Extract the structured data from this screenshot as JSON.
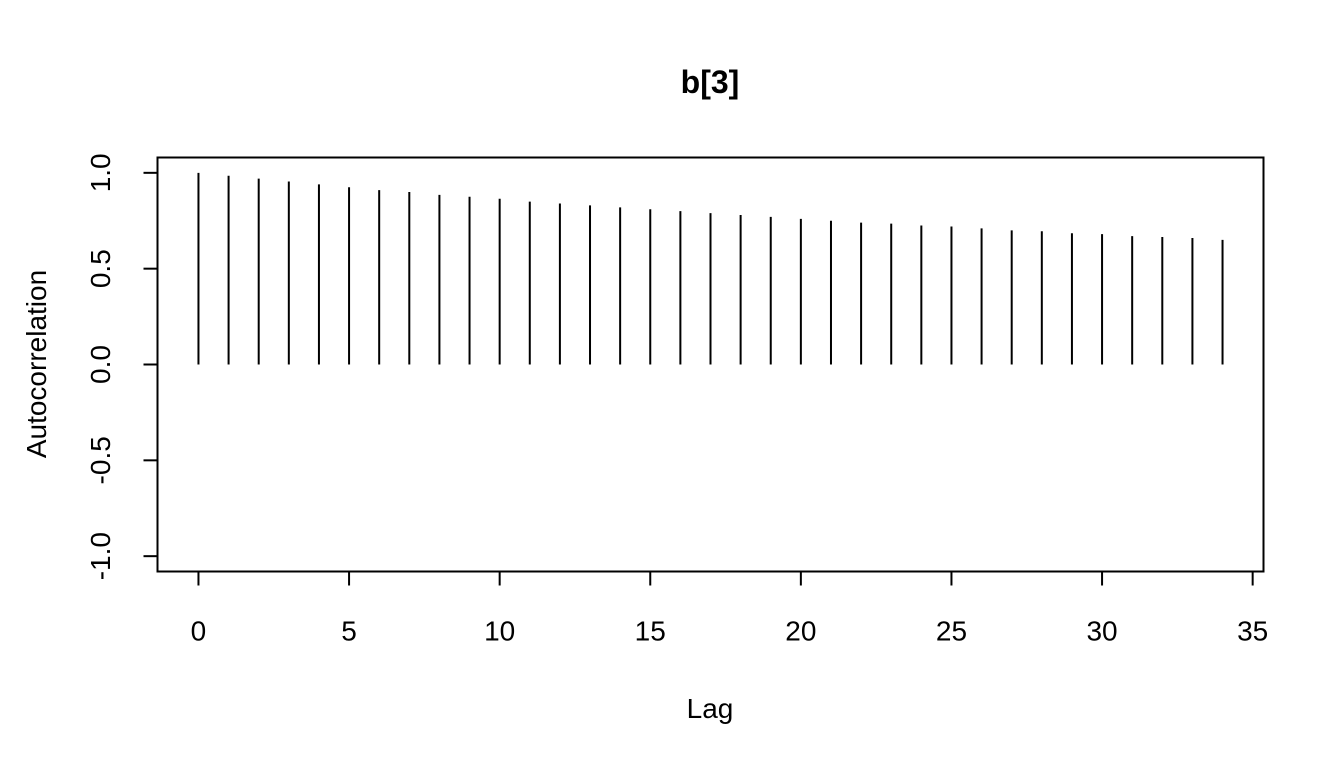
{
  "chart_data": {
    "type": "bar",
    "title": "b[3]",
    "xlabel": "Lag",
    "ylabel": "Autocorrelation",
    "xlim": [
      -1.36,
      35.36
    ],
    "ylim": [
      -1.08,
      1.08
    ],
    "x_ticks": [
      0,
      5,
      10,
      15,
      20,
      25,
      30,
      35
    ],
    "x_tick_labels": [
      "0",
      "5",
      "10",
      "15",
      "20",
      "25",
      "30",
      "35"
    ],
    "y_ticks": [
      -1.0,
      -0.5,
      0.0,
      0.5,
      1.0
    ],
    "y_tick_labels": [
      "-1.0",
      "-0.5",
      "0.0",
      "0.5",
      "1.0"
    ],
    "grid": false,
    "legend": "none",
    "color": "#000000",
    "x": [
      0,
      1,
      2,
      3,
      4,
      5,
      6,
      7,
      8,
      9,
      10,
      11,
      12,
      13,
      14,
      15,
      16,
      17,
      18,
      19,
      20,
      21,
      22,
      23,
      24,
      25,
      26,
      27,
      28,
      29,
      30,
      31,
      32,
      33,
      34
    ],
    "values": [
      1.0,
      0.985,
      0.97,
      0.955,
      0.94,
      0.925,
      0.91,
      0.9,
      0.885,
      0.875,
      0.865,
      0.85,
      0.84,
      0.83,
      0.82,
      0.81,
      0.8,
      0.79,
      0.78,
      0.77,
      0.76,
      0.75,
      0.74,
      0.735,
      0.725,
      0.72,
      0.71,
      0.7,
      0.695,
      0.685,
      0.68,
      0.67,
      0.665,
      0.66,
      0.65
    ]
  }
}
